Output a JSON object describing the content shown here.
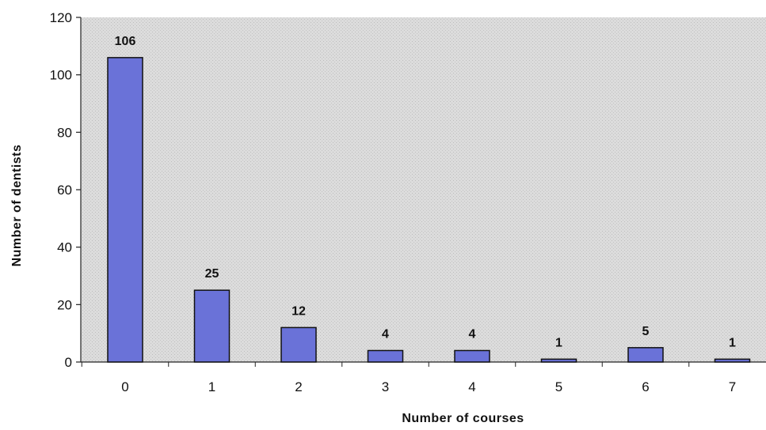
{
  "chart_data": {
    "type": "bar",
    "categories": [
      "0",
      "1",
      "2",
      "3",
      "4",
      "5",
      "6",
      "7"
    ],
    "values": [
      106,
      25,
      12,
      4,
      4,
      1,
      5,
      1
    ],
    "data_labels": [
      "106",
      "25",
      "12",
      "4",
      "4",
      "1",
      "5",
      "1"
    ],
    "xlabel": "Number of courses",
    "ylabel": "Number of dentists",
    "ylim": [
      0,
      120
    ],
    "yticks": [
      0,
      20,
      40,
      60,
      80,
      100,
      120
    ],
    "grid": false,
    "legend": "none",
    "colors": {
      "bar_fill": "#6a72d8",
      "bar_stroke": "#111111",
      "plot_background": "#d6d6d6"
    }
  }
}
